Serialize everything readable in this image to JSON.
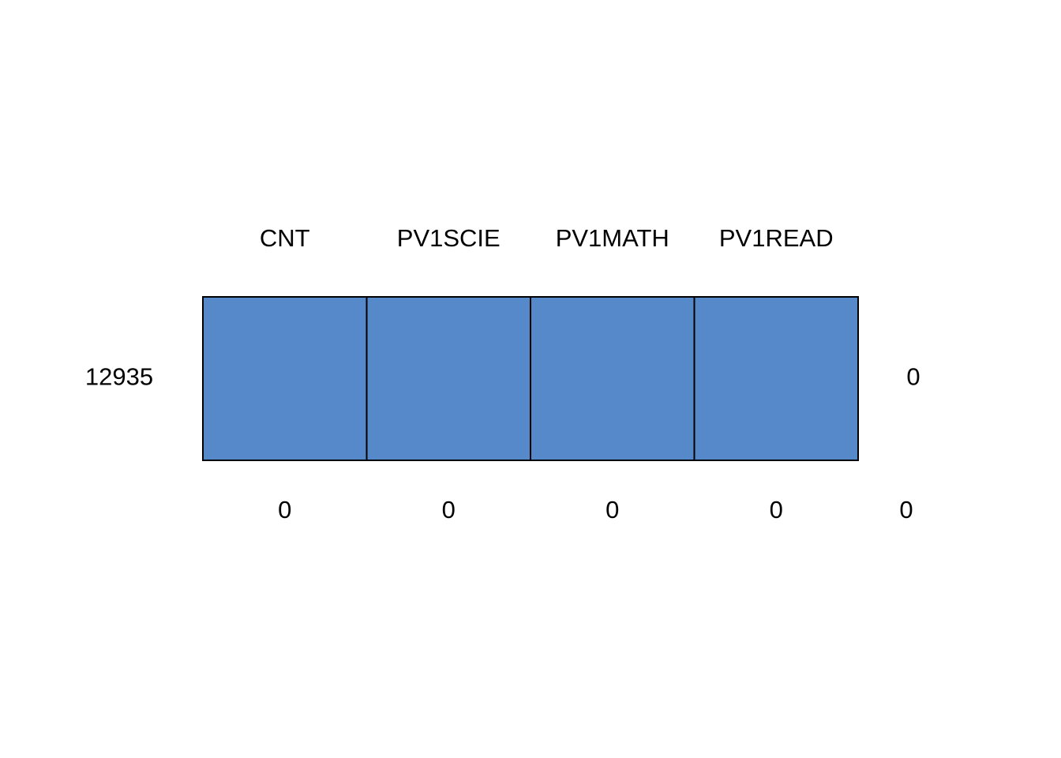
{
  "chart_data": {
    "type": "table",
    "chart_subtype": "missing-data pattern",
    "columns": [
      "CNT",
      "PV1SCIE",
      "PV1MATH",
      "PV1READ"
    ],
    "rows": [
      {
        "count": "12935",
        "observed": [
          true,
          true,
          true,
          true
        ],
        "missing_in_row": "0"
      }
    ],
    "column_missing_totals": [
      "0",
      "0",
      "0",
      "0"
    ],
    "total_missing": "0",
    "colors": {
      "observed": "#5589C9",
      "missing": "#E6484F",
      "border": "#000000"
    }
  }
}
